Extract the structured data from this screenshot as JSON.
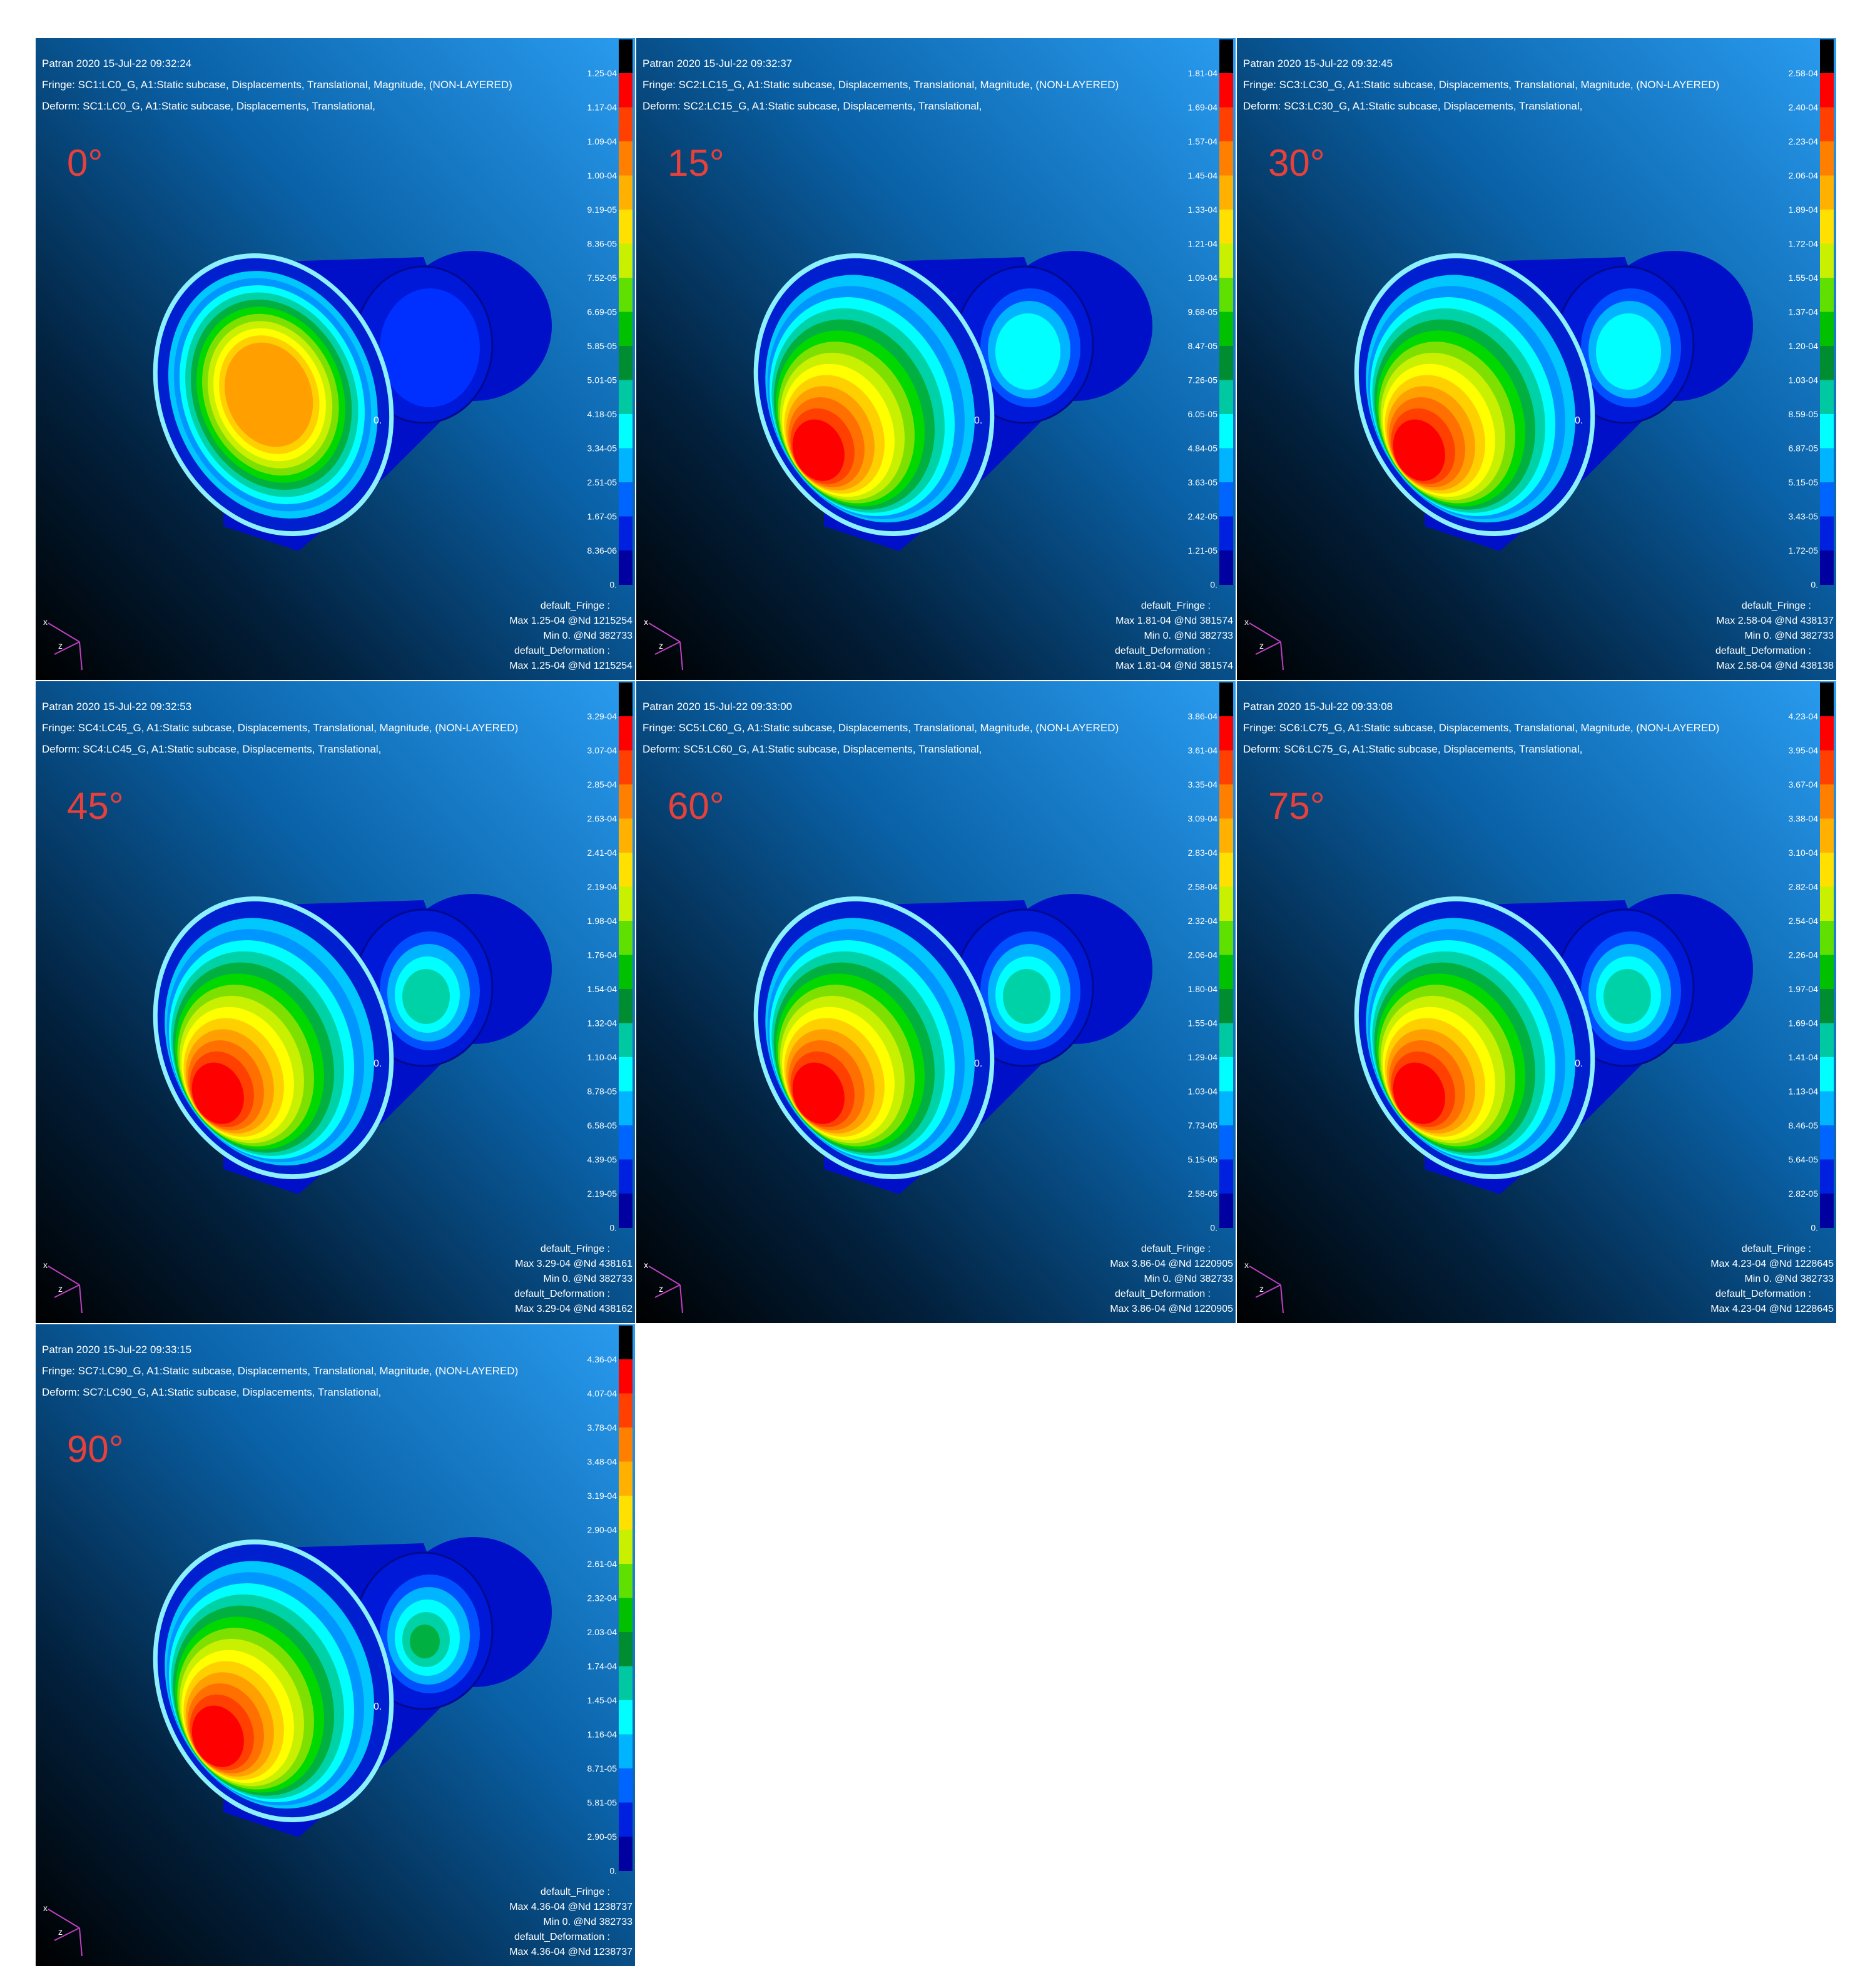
{
  "panels": [
    {
      "header": [
        "Patran 2020 15-Jul-22 09:32:24",
        "Fringe: SC1:LC0_G, A1:Static subcase, Displacements, Translational, Magnitude, (NON-LAYERED)",
        "Deform: SC1:LC0_G, A1:Static subcase, Displacements, Translational,"
      ],
      "angle": "0°",
      "node_label": "0.",
      "legend": [
        "1.25-04",
        "1.17-04",
        "1.09-04",
        "1.00-04",
        "9.19-05",
        "8.36-05",
        "7.52-05",
        "6.69-05",
        "5.85-05",
        "5.01-05",
        "4.18-05",
        "3.34-05",
        "2.51-05",
        "1.67-05",
        "8.36-06",
        "0."
      ],
      "footer": [
        "default_Fringe :",
        "Max 1.25-04 @Nd 1215254",
        "Min 0. @Nd 382733",
        "default_Deformation :",
        "Max 1.25-04 @Nd 1215254"
      ],
      "triad": [
        "x",
        "z"
      ]
    },
    {
      "header": [
        "Patran 2020 15-Jul-22 09:32:37",
        "Fringe: SC2:LC15_G, A1:Static subcase, Displacements, Translational, Magnitude, (NON-LAYERED)",
        "Deform: SC2:LC15_G, A1:Static subcase, Displacements, Translational,"
      ],
      "angle": "15°",
      "node_label": "0.",
      "legend": [
        "1.81-04",
        "1.69-04",
        "1.57-04",
        "1.45-04",
        "1.33-04",
        "1.21-04",
        "1.09-04",
        "9.68-05",
        "8.47-05",
        "7.26-05",
        "6.05-05",
        "4.84-05",
        "3.63-05",
        "2.42-05",
        "1.21-05",
        "0."
      ],
      "footer": [
        "default_Fringe :",
        "Max 1.81-04 @Nd 381574",
        "Min 0. @Nd 382733",
        "default_Deformation :",
        "Max 1.81-04 @Nd 381574"
      ],
      "triad": [
        "x",
        "z"
      ]
    },
    {
      "header": [
        "Patran 2020 15-Jul-22 09:32:45",
        "Fringe: SC3:LC30_G, A1:Static subcase, Displacements, Translational, Magnitude, (NON-LAYERED)",
        "Deform: SC3:LC30_G, A1:Static subcase, Displacements, Translational,"
      ],
      "angle": "30°",
      "node_label": "0.",
      "legend": [
        "2.58-04",
        "2.40-04",
        "2.23-04",
        "2.06-04",
        "1.89-04",
        "1.72-04",
        "1.55-04",
        "1.37-04",
        "1.20-04",
        "1.03-04",
        "8.59-05",
        "6.87-05",
        "5.15-05",
        "3.43-05",
        "1.72-05",
        "0."
      ],
      "footer": [
        "default_Fringe :",
        "Max 2.58-04 @Nd 438137",
        "Min 0. @Nd 382733",
        "default_Deformation :",
        "Max 2.58-04 @Nd 438138"
      ],
      "triad": [
        "x",
        "z"
      ]
    },
    {
      "header": [
        "Patran 2020 15-Jul-22 09:32:53",
        "Fringe: SC4:LC45_G, A1:Static subcase, Displacements, Translational, Magnitude, (NON-LAYERED)",
        "Deform: SC4:LC45_G, A1:Static subcase, Displacements, Translational,"
      ],
      "angle": "45°",
      "node_label": "0.",
      "legend": [
        "3.29-04",
        "3.07-04",
        "2.85-04",
        "2.63-04",
        "2.41-04",
        "2.19-04",
        "1.98-04",
        "1.76-04",
        "1.54-04",
        "1.32-04",
        "1.10-04",
        "8.78-05",
        "6.58-05",
        "4.39-05",
        "2.19-05",
        "0."
      ],
      "footer": [
        "default_Fringe :",
        "Max 3.29-04 @Nd 438161",
        "Min 0. @Nd 382733",
        "default_Deformation :",
        "Max 3.29-04 @Nd 438162"
      ],
      "triad": [
        "x",
        "z"
      ]
    },
    {
      "header": [
        "Patran 2020 15-Jul-22 09:33:00",
        "Fringe: SC5:LC60_G, A1:Static subcase, Displacements, Translational, Magnitude, (NON-LAYERED)",
        "Deform: SC5:LC60_G, A1:Static subcase, Displacements, Translational,"
      ],
      "angle": "60°",
      "node_label": "0.",
      "legend": [
        "3.86-04",
        "3.61-04",
        "3.35-04",
        "3.09-04",
        "2.83-04",
        "2.58-04",
        "2.32-04",
        "2.06-04",
        "1.80-04",
        "1.55-04",
        "1.29-04",
        "1.03-04",
        "7.73-05",
        "5.15-05",
        "2.58-05",
        "0."
      ],
      "footer": [
        "default_Fringe :",
        "Max 3.86-04 @Nd 1220905",
        "Min 0. @Nd 382733",
        "default_Deformation :",
        "Max 3.86-04 @Nd 1220905"
      ],
      "triad": [
        "x",
        "z"
      ]
    },
    {
      "header": [
        "Patran 2020 15-Jul-22 09:33:08",
        "Fringe: SC6:LC75_G, A1:Static subcase, Displacements, Translational, Magnitude, (NON-LAYERED)",
        "Deform: SC6:LC75_G, A1:Static subcase, Displacements, Translational,"
      ],
      "angle": "75°",
      "node_label": "0.",
      "legend": [
        "4.23-04",
        "3.95-04",
        "3.67-04",
        "3.38-04",
        "3.10-04",
        "2.82-04",
        "2.54-04",
        "2.26-04",
        "1.97-04",
        "1.69-04",
        "1.41-04",
        "1.13-04",
        "8.46-05",
        "5.64-05",
        "2.82-05",
        "0."
      ],
      "footer": [
        "default_Fringe :",
        "Max 4.23-04 @Nd 1228645",
        "Min 0. @Nd 382733",
        "default_Deformation :",
        "Max 4.23-04 @Nd 1228645"
      ],
      "triad": [
        "x",
        "z"
      ]
    },
    {
      "header": [
        "Patran 2020 15-Jul-22 09:33:15",
        "Fringe: SC7:LC90_G, A1:Static subcase, Displacements, Translational, Magnitude, (NON-LAYERED)",
        "Deform: SC7:LC90_G, A1:Static subcase, Displacements, Translational,"
      ],
      "angle": "90°",
      "node_label": "0.",
      "legend": [
        "4.36-04",
        "4.07-04",
        "3.78-04",
        "3.48-04",
        "3.19-04",
        "2.90-04",
        "2.61-04",
        "2.32-04",
        "2.03-04",
        "1.74-04",
        "1.45-04",
        "1.16-04",
        "8.71-05",
        "5.81-05",
        "2.90-05",
        "0."
      ],
      "footer": [
        "default_Fringe :",
        "Max 4.36-04 @Nd 1238737",
        "Min 0. @Nd 382733",
        "default_Deformation :",
        "Max 4.36-04 @Nd 1238737"
      ],
      "triad": [
        "x",
        "z"
      ]
    }
  ]
}
